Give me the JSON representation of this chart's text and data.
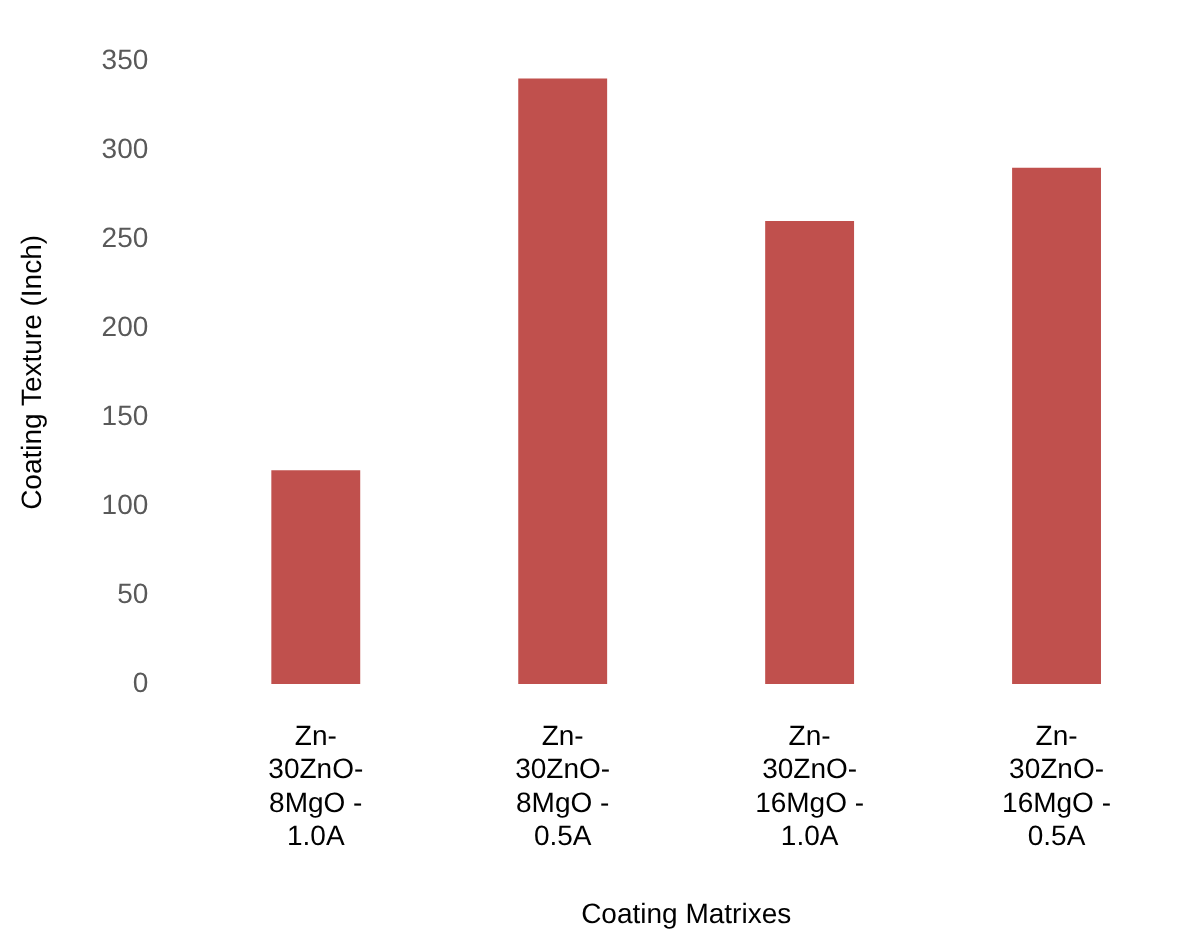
{
  "chart_data": {
    "type": "bar",
    "xlabel": "Coating Matrixes",
    "ylabel": "Coating Texture (Inch)",
    "categories": [
      "Zn-30ZnO-8MgO - 1.0A",
      "Zn-30ZnO-8MgO - 0.5A",
      "Zn-30ZnO-16MgO - 1.0A",
      "Zn-30ZnO-16MgO - 0.5A"
    ],
    "values": [
      120,
      340,
      260,
      290
    ],
    "color": "#c0504d",
    "ylim": [
      0,
      350
    ],
    "yticks": [
      0,
      50,
      100,
      150,
      200,
      250,
      300,
      350
    ],
    "grid": false,
    "legend": false
  }
}
